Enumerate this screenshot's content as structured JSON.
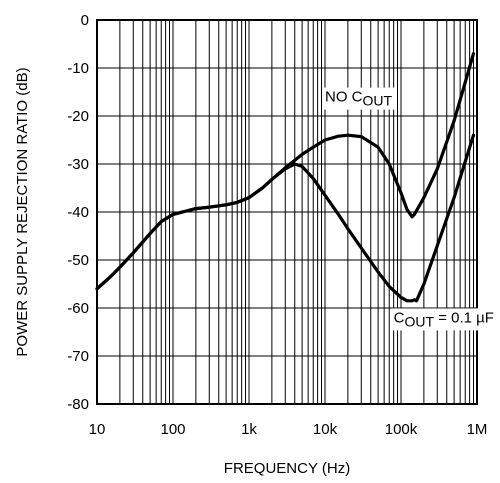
{
  "chart_data": {
    "type": "line",
    "xlabel": "FREQUENCY (Hz)",
    "ylabel": "POWER SUPPLY REJECTION RATIO (dB)",
    "x_scale": "log",
    "xlim": [
      10,
      1000000
    ],
    "ylim": [
      -80,
      0
    ],
    "grid": true,
    "x_tick_values": [
      10,
      100,
      1000,
      10000,
      100000,
      1000000
    ],
    "x_tick_labels": [
      "10",
      "100",
      "1k",
      "10k",
      "100k",
      "1M"
    ],
    "y_tick_values": [
      0,
      -10,
      -20,
      -30,
      -40,
      -50,
      -60,
      -70,
      -80
    ],
    "y_tick_labels": [
      "0",
      "-10",
      "-20",
      "-30",
      "-40",
      "-50",
      "-60",
      "-70",
      "-80"
    ],
    "annotations": [
      {
        "text": "NO C",
        "sub": "OUT",
        "suffix": "",
        "x": 10000,
        "y": -17
      },
      {
        "text": "C",
        "sub": "OUT",
        "suffix": " = 0.1 µF",
        "x": 80000,
        "y": -63
      }
    ],
    "series": [
      {
        "x": [
          10,
          15,
          20,
          30,
          50,
          70,
          100,
          150,
          200,
          300,
          500,
          700,
          1000,
          1500,
          2000,
          3000,
          4000,
          5000,
          7000,
          10000,
          15000,
          20000,
          30000,
          50000,
          70000,
          100000,
          120000,
          140000,
          150000,
          200000,
          300000,
          500000,
          700000,
          900000
        ],
        "y": [
          -56,
          -53.5,
          -51.5,
          -48.5,
          -44.5,
          -42,
          -40.5,
          -39.8,
          -39.3,
          -39,
          -38.5,
          -38,
          -37,
          -35,
          -33.2,
          -30.8,
          -29.2,
          -28,
          -26.5,
          -25,
          -24.2,
          -24,
          -24.3,
          -26.5,
          -30,
          -36,
          -39.5,
          -41,
          -40.5,
          -37,
          -31,
          -21,
          -13,
          -7
        ]
      },
      {
        "x": [
          10,
          15,
          20,
          30,
          50,
          70,
          100,
          150,
          200,
          300,
          500,
          700,
          1000,
          1500,
          2000,
          3000,
          4000,
          5000,
          7000,
          10000,
          15000,
          20000,
          30000,
          50000,
          70000,
          100000,
          120000,
          140000,
          150000,
          160000,
          200000,
          300000,
          500000,
          700000,
          900000
        ],
        "y": [
          -56,
          -53.5,
          -51.5,
          -48.5,
          -44.5,
          -42,
          -40.5,
          -39.8,
          -39.3,
          -39,
          -38.5,
          -38,
          -37,
          -35,
          -33.2,
          -31,
          -30,
          -30.5,
          -33,
          -36.5,
          -40.5,
          -43.5,
          -47.5,
          -52.5,
          -55.5,
          -57.8,
          -58.5,
          -58.5,
          -58.3,
          -58.5,
          -55,
          -47,
          -37,
          -29.5,
          -24
        ]
      }
    ]
  }
}
